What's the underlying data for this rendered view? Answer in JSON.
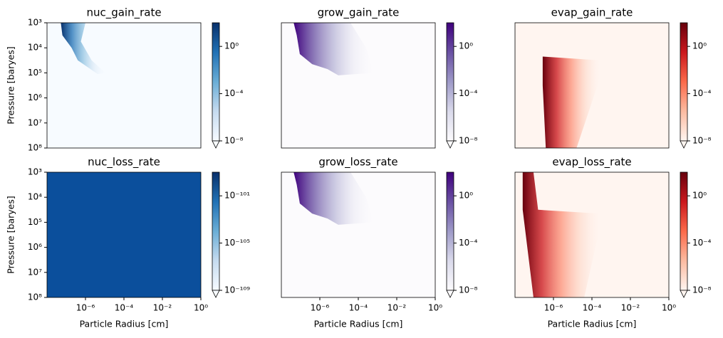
{
  "chart_data": [
    {
      "type": "heatmap",
      "title": "nuc_gain_rate",
      "ylabel": "Pressure [baryes]",
      "xlim": [
        1e-08,
        1
      ],
      "ylim": [
        1000,
        100000000
      ],
      "log": true,
      "yticks": [
        {
          "value": 1000,
          "label": "10³"
        },
        {
          "value": 10000,
          "label": "10⁴"
        },
        {
          "value": 100000,
          "label": "10⁵"
        },
        {
          "value": 1000000,
          "label": "10⁶"
        },
        {
          "value": 10000000,
          "label": "10⁷"
        },
        {
          "value": 100000000,
          "label": "10⁸"
        }
      ],
      "colorbar": {
        "clim": [
          1e-08,
          100
        ],
        "colors": [
          "#f7fbff",
          "#c6dbef",
          "#6baed6",
          "#2171b5",
          "#08306b"
        ],
        "ticks": [
          {
            "value": 1,
            "label": "10⁰"
          },
          {
            "value": 0.0001,
            "label": "10⁻⁴"
          },
          {
            "value": 1e-08,
            "label": "10⁻⁸"
          }
        ]
      }
    },
    {
      "type": "heatmap",
      "title": "grow_gain_rate",
      "xlim": [
        1e-08,
        1
      ],
      "ylim": [
        1000,
        100000000
      ],
      "log": true,
      "colorbar": {
        "clim": [
          1e-08,
          100
        ],
        "colors": [
          "#fcfbfd",
          "#dadaeb",
          "#9e9ac8",
          "#6a51a3",
          "#3f007d"
        ],
        "ticks": [
          {
            "value": 1,
            "label": "10⁰"
          },
          {
            "value": 0.0001,
            "label": "10⁻⁴"
          },
          {
            "value": 1e-08,
            "label": "10⁻⁸"
          }
        ]
      }
    },
    {
      "type": "heatmap",
      "title": "evap_gain_rate",
      "xlim": [
        1e-08,
        1
      ],
      "ylim": [
        1000,
        100000000
      ],
      "log": true,
      "colorbar": {
        "clim": [
          1e-08,
          100
        ],
        "colors": [
          "#fff5f0",
          "#fcbba1",
          "#fb6a4a",
          "#cb181d",
          "#67000d"
        ],
        "ticks": [
          {
            "value": 1,
            "label": "10⁰"
          },
          {
            "value": 0.0001,
            "label": "10⁻⁴"
          },
          {
            "value": 1e-08,
            "label": "10⁻⁸"
          }
        ]
      }
    },
    {
      "type": "heatmap",
      "title": "nuc_loss_rate",
      "xlabel": "Particle Radius [cm]",
      "ylabel": "Pressure [baryes]",
      "xlim": [
        1e-08,
        1
      ],
      "ylim": [
        1000,
        100000000
      ],
      "log": true,
      "fill": "#0b4f9c",
      "xticks": [
        {
          "value": 1e-06,
          "label": "10⁻⁶"
        },
        {
          "value": 0.0001,
          "label": "10⁻⁴"
        },
        {
          "value": 0.01,
          "label": "10⁻²"
        },
        {
          "value": 1,
          "label": "10⁰"
        }
      ],
      "yticks": [
        {
          "value": 1000,
          "label": "10³"
        },
        {
          "value": 10000,
          "label": "10⁴"
        },
        {
          "value": 100000,
          "label": "10⁵"
        },
        {
          "value": 1000000,
          "label": "10⁶"
        },
        {
          "value": 10000000,
          "label": "10⁷"
        },
        {
          "value": 100000000,
          "label": "10⁸"
        }
      ],
      "colorbar": {
        "clim": [
          1e-109,
          1e-99
        ],
        "colors": [
          "#f7fbff",
          "#c6dbef",
          "#6baed6",
          "#2171b5",
          "#08306b"
        ],
        "ticks": [
          {
            "value": 1e-101,
            "label": "10⁻¹⁰¹"
          },
          {
            "value": 1e-105,
            "label": "10⁻¹⁰⁵"
          },
          {
            "value": 1e-109,
            "label": "10⁻¹⁰⁹"
          }
        ]
      }
    },
    {
      "type": "heatmap",
      "title": "grow_loss_rate",
      "xlabel": "Particle Radius [cm]",
      "xlim": [
        1e-08,
        1
      ],
      "ylim": [
        1000,
        100000000
      ],
      "log": true,
      "xticks": [
        {
          "value": 1e-06,
          "label": "10⁻⁶"
        },
        {
          "value": 0.0001,
          "label": "10⁻⁴"
        },
        {
          "value": 0.01,
          "label": "10⁻²"
        },
        {
          "value": 1,
          "label": "10⁰"
        }
      ],
      "colorbar": {
        "clim": [
          1e-08,
          100
        ],
        "colors": [
          "#fcfbfd",
          "#dadaeb",
          "#9e9ac8",
          "#6a51a3",
          "#3f007d"
        ],
        "ticks": [
          {
            "value": 1,
            "label": "10⁰"
          },
          {
            "value": 0.0001,
            "label": "10⁻⁴"
          },
          {
            "value": 1e-08,
            "label": "10⁻⁸"
          }
        ]
      }
    },
    {
      "type": "heatmap",
      "title": "evap_loss_rate",
      "xlabel": "Particle Radius [cm]",
      "xlim": [
        1e-08,
        1
      ],
      "ylim": [
        1000,
        100000000
      ],
      "log": true,
      "xticks": [
        {
          "value": 1e-06,
          "label": "10⁻⁶"
        },
        {
          "value": 0.0001,
          "label": "10⁻⁴"
        },
        {
          "value": 0.01,
          "label": "10⁻²"
        },
        {
          "value": 1,
          "label": "10⁰"
        }
      ],
      "colorbar": {
        "clim": [
          1e-08,
          100
        ],
        "colors": [
          "#fff5f0",
          "#fcbba1",
          "#fb6a4a",
          "#cb181d",
          "#67000d"
        ],
        "ticks": [
          {
            "value": 1,
            "label": "10⁰"
          },
          {
            "value": 0.0001,
            "label": "10⁻⁴"
          },
          {
            "value": 1e-08,
            "label": "10⁻⁸"
          }
        ]
      }
    }
  ]
}
